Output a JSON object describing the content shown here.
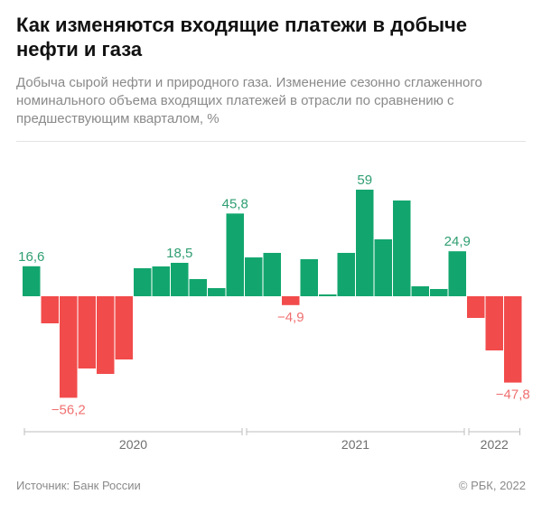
{
  "header": {
    "title": "Как изменяются входящие платежи в добыче нефти и газа",
    "subtitle": "Добыча сырой нефти и природного газа. Изменение сезонно сглаженного номинального объема входящих платежей в отрасли по сравнению с предшествующим кварталом, %"
  },
  "footer": {
    "source": "Источник: Банк России",
    "copyright": "© РБК, 2022"
  },
  "colors": {
    "positive": "#12a66e",
    "negative": "#f24b4b",
    "positive_label": "#2f9e72",
    "negative_label": "#f07070",
    "axis": "#bdbdbd",
    "year_label": "#6f6f6f"
  },
  "chart_data": {
    "type": "bar",
    "title": "Как изменяются входящие платежи в добыче нефти и газа",
    "xlabel": "",
    "ylabel": "%",
    "ylim": [
      -62,
      65
    ],
    "grid": false,
    "legend": "none",
    "values": [
      16.6,
      -15,
      -56.2,
      -40,
      -43,
      -35,
      15.5,
      16.5,
      18.5,
      9.5,
      4.5,
      45.8,
      21.5,
      24,
      -4.9,
      20.5,
      1,
      24,
      59,
      31.5,
      53,
      5.5,
      4,
      24.9,
      -12,
      -30,
      -47.8
    ],
    "data_labels": [
      {
        "index": 0,
        "text": "16,6"
      },
      {
        "index": 2,
        "text": "−56,2"
      },
      {
        "index": 8,
        "text": "18,5"
      },
      {
        "index": 11,
        "text": "45,8"
      },
      {
        "index": 14,
        "text": "−4,9"
      },
      {
        "index": 18,
        "text": "59"
      },
      {
        "index": 23,
        "text": "24,9"
      },
      {
        "index": 26,
        "text": "−47,8"
      }
    ],
    "year_groups": [
      {
        "label": "2020",
        "start": 0,
        "end": 11
      },
      {
        "label": "2021",
        "start": 12,
        "end": 23
      },
      {
        "label": "2022",
        "start": 24,
        "end": 26
      }
    ]
  }
}
